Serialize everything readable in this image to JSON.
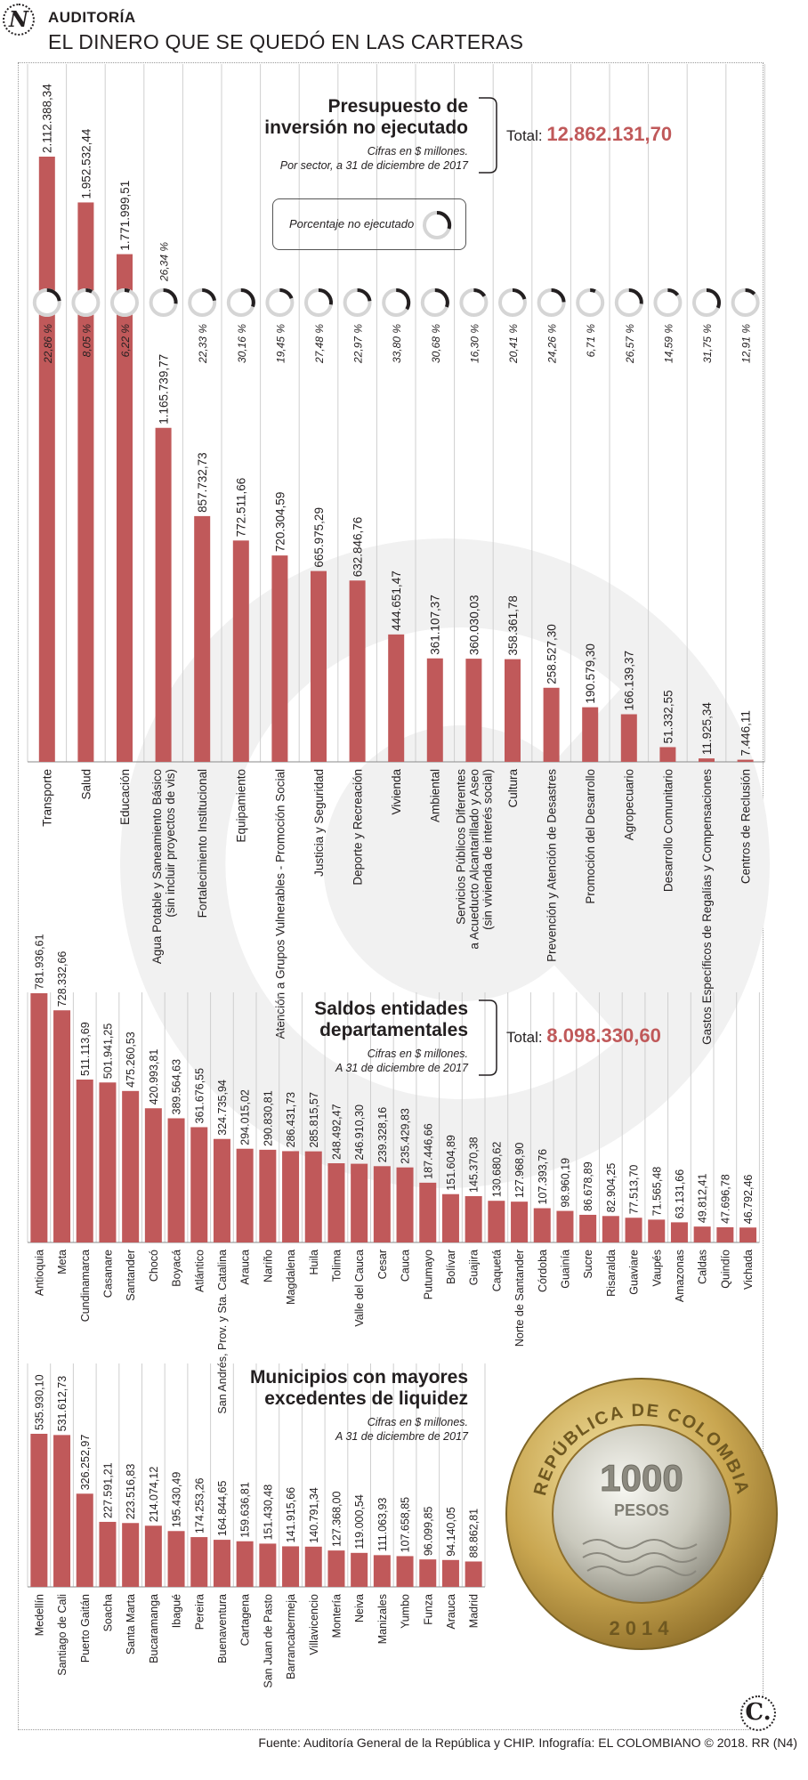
{
  "header": {
    "section": "AUDITORÍA",
    "title": "EL DINERO QUE SE QUEDÓ EN LAS CARTERAS",
    "logo_letter": "N"
  },
  "colors": {
    "bar": "#c0595a",
    "accent": "#c0595a",
    "grid": "#cfcfcf",
    "text": "#231f20"
  },
  "legend_pct": {
    "label": "Porcentaje no ejecutado"
  },
  "chart_data": [
    {
      "type": "bar",
      "title": "Presupuesto de inversión no ejecutado",
      "title_lines": [
        "Presupuesto de",
        "inversión no ejecutado"
      ],
      "subtitle_lines": [
        "Cifras en $ millones.",
        "Por sector, a 31 de diciembre de 2017"
      ],
      "total_label": "Total:",
      "total_value": "12.862.131,70",
      "categories": [
        "Transporte",
        "Salud",
        "Educación",
        "Agua Potable y Saneamiento Básico\n(sin incluir proyectos de vis)",
        "Fortalecimiento Institucional",
        "Equipamiento",
        "Atención a Grupos Vulnerables - Promoción Social",
        "Justicia y Seguridad",
        "Deporte y Recreación",
        "Vivienda",
        "Ambiental",
        "Servicios Públicos Diferentes\na Acueducto Alcantarillado y Aseo\n(sin vivienda de interés social)",
        "Cultura",
        "Prevención y Atención de Desastres",
        "Promoción del Desarrollo",
        "Agropecuario",
        "Desarrollo Comunitario",
        "Gastos Específicos de Regalías y Compensaciones",
        "Centros de Reclusión"
      ],
      "values": [
        2112388.34,
        1952532.44,
        1771999.51,
        1165739.77,
        857732.73,
        772511.66,
        720304.59,
        665975.29,
        632846.76,
        444651.47,
        361107.37,
        360030.03,
        358361.78,
        258527.3,
        190579.3,
        166139.37,
        51332.55,
        11925.34,
        7446.11
      ],
      "value_labels": [
        "2.112.388,34",
        "1.952.532,44",
        "1.771.999,51",
        "1.165.739,77",
        "857.732,73",
        "772.511,66",
        "720.304,59",
        "665.975,29",
        "632.846,76",
        "444.651,47",
        "361.107,37",
        "360.030,03",
        "358.361,78",
        "258.527,30",
        "190.579,30",
        "166.139,37",
        "51.332,55",
        "11.925,34",
        "7.446,11"
      ],
      "pct_values": [
        22.86,
        8.05,
        6.22,
        26.34,
        22.33,
        30.16,
        19.45,
        27.48,
        22.97,
        33.8,
        30.68,
        16.3,
        20.41,
        24.26,
        6.71,
        26.57,
        14.59,
        31.75,
        12.91
      ],
      "pct_labels": [
        "22,86 %",
        "8,05 %",
        "6,22 %",
        "26,34 %",
        "22,33 %",
        "30,16 %",
        "19,45 %",
        "27,48 %",
        "22,97 %",
        "33,80 %",
        "30,68 %",
        "16,30 %",
        "20,41 %",
        "24,26 %",
        "6,71 %",
        "26,57 %",
        "14,59 %",
        "31,75 %",
        "12,91 %"
      ],
      "ylim": [
        0,
        2112388.34
      ]
    },
    {
      "type": "bar",
      "title": "Saldos entidades departamentales",
      "title_lines": [
        "Saldos entidades",
        "departamentales"
      ],
      "subtitle_lines": [
        "Cifras en $ millones.",
        "A 31 de diciembre de 2017"
      ],
      "total_label": "Total:",
      "total_value": "8.098.330,60",
      "categories": [
        "Antioquia",
        "Meta",
        "Cundinamarca",
        "Casanare",
        "Santander",
        "Chocó",
        "Boyacá",
        "Atlántico",
        "San Andrés, Prov. y Sta. Catalina",
        "Arauca",
        "Nariño",
        "Magdalena",
        "Huila",
        "Tolima",
        "Valle del Cauca",
        "Cesar",
        "Cauca",
        "Putumayo",
        "Bolívar",
        "Guajira",
        "Caquetá",
        "Norte de Santander",
        "Córdoba",
        "Guainía",
        "Sucre",
        "Risaralda",
        "Guaviare",
        "Vaupés",
        "Amazonas",
        "Caldas",
        "Quindío",
        "Vichada"
      ],
      "values": [
        781936.61,
        728332.66,
        511113.69,
        501941.25,
        475260.53,
        420993.81,
        389564.63,
        361676.55,
        324735.94,
        294015.02,
        290830.81,
        286431.73,
        285815.57,
        248492.47,
        246910.3,
        239328.16,
        235429.83,
        187446.66,
        151604.89,
        145370.38,
        130680.62,
        127968.9,
        107393.76,
        98960.19,
        86678.89,
        82904.25,
        77513.7,
        71565.48,
        63131.66,
        49812.41,
        47696.78,
        46792.46
      ],
      "value_labels": [
        "781.936,61",
        "728.332,66",
        "511.113,69",
        "501.941,25",
        "475.260,53",
        "420.993,81",
        "389.564,63",
        "361.676,55",
        "324.735,94",
        "294.015,02",
        "290.830,81",
        "286.431,73",
        "285.815,57",
        "248.492,47",
        "246.910,30",
        "239.328,16",
        "235.429,83",
        "187.446,66",
        "151.604,89",
        "145.370,38",
        "130.680,62",
        "127.968,90",
        "107.393,76",
        "98.960,19",
        "86.678,89",
        "82.904,25",
        "77.513,70",
        "71.565,48",
        "63.131,66",
        "49.812,41",
        "47.696,78",
        "46.792,46"
      ],
      "ylim": [
        0,
        781936.61
      ]
    },
    {
      "type": "bar",
      "title": "Municipios con mayores excedentes de liquidez",
      "title_lines": [
        "Municipios con mayores",
        "excedentes de liquidez"
      ],
      "subtitle_lines": [
        "Cifras en $ millones.",
        "A 31 de diciembre de 2017"
      ],
      "categories": [
        "Medellín",
        "Santiago de Cali",
        "Puerto Gaitán",
        "Soacha",
        "Santa Marta",
        "Bucaramanga",
        "Ibagué",
        "Pereira",
        "Buenaventura",
        "Cartagena",
        "San Juan de Pasto",
        "Barrancabermeja",
        "Villavicencio",
        "Montería",
        "Neiva",
        "Manizales",
        "Yumbo",
        "Funza",
        "Arauca",
        "Madrid"
      ],
      "values": [
        535930.1,
        531612.73,
        326252.97,
        227591.21,
        223516.83,
        214074.12,
        195430.49,
        174253.26,
        164844.65,
        159636.81,
        151430.48,
        141915.66,
        140791.34,
        127368.0,
        119000.54,
        111063.93,
        107658.85,
        96099.85,
        94140.05,
        88862.81
      ],
      "value_labels": [
        "535.930,10",
        "531.612,73",
        "326.252,97",
        "227.591,21",
        "223.516,83",
        "214.074,12",
        "195.430,49",
        "174.253,26",
        "164.844,65",
        "159.636,81",
        "151.430,48",
        "141.915,66",
        "140.791,34",
        "127.368,00",
        "119.000,54",
        "111.063,93",
        "107.658,85",
        "96.099,85",
        "94.140,05",
        "88.862,81"
      ],
      "ylim": [
        0,
        535930.1
      ]
    }
  ],
  "coin": {
    "top_text": "REPÚBLICA DE COLOMBIA",
    "value": "1000",
    "unit": "PESOS",
    "year": "2014"
  },
  "footer": {
    "source": "Fuente: Auditoría General de la República y CHIP. Infografía: EL COLOMBIANO © 2018. RR (N4)",
    "logo_letter": "C."
  }
}
